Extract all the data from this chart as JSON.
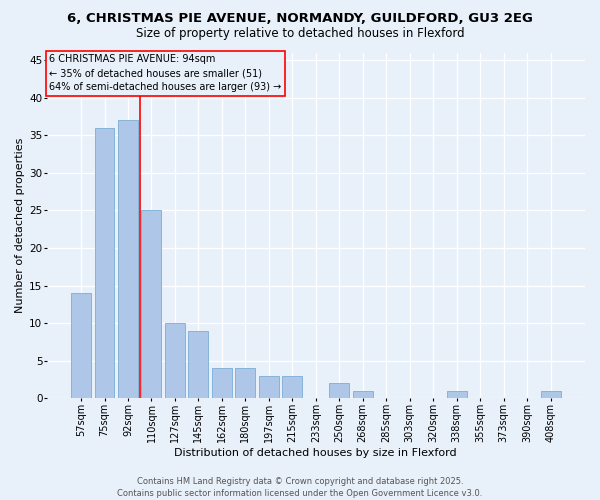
{
  "title_line1": "6, CHRISTMAS PIE AVENUE, NORMANDY, GUILDFORD, GU3 2EG",
  "title_line2": "Size of property relative to detached houses in Flexford",
  "xlabel": "Distribution of detached houses by size in Flexford",
  "ylabel": "Number of detached properties",
  "categories": [
    "57sqm",
    "75sqm",
    "92sqm",
    "110sqm",
    "127sqm",
    "145sqm",
    "162sqm",
    "180sqm",
    "197sqm",
    "215sqm",
    "233sqm",
    "250sqm",
    "268sqm",
    "285sqm",
    "303sqm",
    "320sqm",
    "338sqm",
    "355sqm",
    "373sqm",
    "390sqm",
    "408sqm"
  ],
  "values": [
    14,
    36,
    37,
    25,
    10,
    9,
    4,
    4,
    3,
    3,
    0,
    2,
    1,
    0,
    0,
    0,
    1,
    0,
    0,
    0,
    1
  ],
  "bar_color": "#aec6e8",
  "bar_edge_color": "#7aadd4",
  "background_color": "#e8f0fa",
  "grid_color": "#ffffff",
  "ylim": [
    0,
    46
  ],
  "yticks": [
    0,
    5,
    10,
    15,
    20,
    25,
    30,
    35,
    40,
    45
  ],
  "annotation_line1": "6 CHRISTMAS PIE AVENUE: 94sqm",
  "annotation_line2": "← 35% of detached houses are smaller (51)",
  "annotation_line3": "64% of semi-detached houses are larger (93) →",
  "red_line_x": 2.5,
  "footer_line1": "Contains HM Land Registry data © Crown copyright and database right 2025.",
  "footer_line2": "Contains public sector information licensed under the Open Government Licence v3.0.",
  "title_fontsize": 9.5,
  "subtitle_fontsize": 8.5,
  "tick_fontsize": 7,
  "ylabel_fontsize": 8,
  "xlabel_fontsize": 8,
  "annotation_fontsize": 7,
  "footer_fontsize": 6
}
